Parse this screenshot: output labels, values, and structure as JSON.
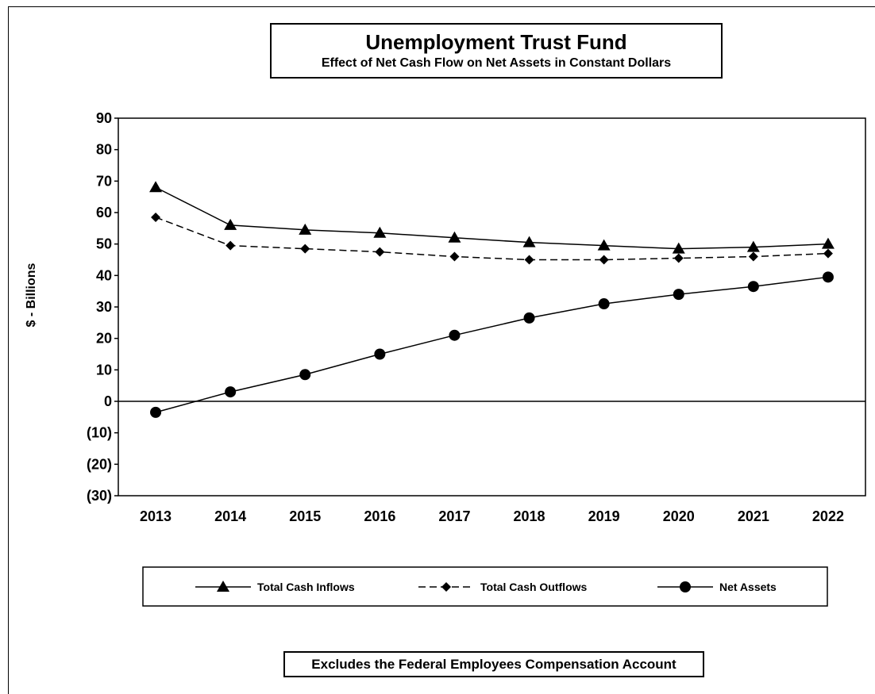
{
  "chart_data": {
    "type": "line",
    "title": "Unemployment Trust Fund",
    "subtitle": "Effect of Net Cash Flow on Net Assets in Constant Dollars",
    "xlabel": "",
    "ylabel": "$ - Billions",
    "categories": [
      "2013",
      "2014",
      "2015",
      "2016",
      "2017",
      "2018",
      "2019",
      "2020",
      "2021",
      "2022"
    ],
    "ylim": [
      -30,
      90
    ],
    "yticks": [
      90,
      80,
      70,
      60,
      50,
      40,
      30,
      20,
      10,
      0,
      -10,
      -20,
      -30
    ],
    "ytick_labels": [
      "90",
      "80",
      "70",
      "60",
      "50",
      "40",
      "30",
      "20",
      "10",
      "0",
      "(10)",
      "(20)",
      "(30)"
    ],
    "grid": false,
    "legend_position": "bottom",
    "series": [
      {
        "name": "Total Cash Inflows",
        "marker": "triangle",
        "line_style": "solid",
        "values": [
          68,
          56,
          54.5,
          53.5,
          52,
          50.5,
          49.5,
          48.5,
          49,
          50
        ]
      },
      {
        "name": "Total Cash Outflows",
        "marker": "diamond",
        "line_style": "dashed",
        "values": [
          58.5,
          49.5,
          48.5,
          47.5,
          46,
          45,
          45,
          45.5,
          46,
          47
        ]
      },
      {
        "name": "Net Assets",
        "marker": "circle",
        "line_style": "solid",
        "values": [
          -3.5,
          3,
          8.5,
          15,
          21,
          26.5,
          31,
          34,
          36.5,
          39.5
        ]
      }
    ],
    "footnote": "Excludes the Federal Employees Compensation Account",
    "colors": {
      "line": "#000000",
      "background": "#ffffff"
    }
  }
}
